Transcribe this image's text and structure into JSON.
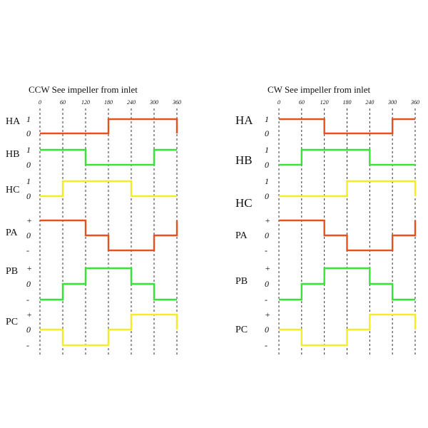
{
  "colors": {
    "red": "#e8501e",
    "green": "#33e633",
    "yellow": "#f2ec2a"
  },
  "angles": [
    "0",
    "60",
    "120",
    "180",
    "240",
    "300",
    "360"
  ],
  "panels": [
    {
      "id": "ccw",
      "title": "CCW  See  impeller  from  inlet",
      "rows": [
        {
          "label": "HA",
          "levels": [
            "1",
            "0"
          ],
          "color": "red",
          "states": [
            0,
            0,
            0,
            1,
            1,
            1
          ]
        },
        {
          "label": "HB",
          "levels": [
            "1",
            "0"
          ],
          "color": "green",
          "states": [
            1,
            1,
            0,
            0,
            0,
            1
          ]
        },
        {
          "label": "HC",
          "levels": [
            "1",
            "0"
          ],
          "color": "yellow",
          "states": [
            0,
            1,
            1,
            1,
            0,
            0
          ]
        },
        {
          "label": "PA",
          "levels": [
            "+",
            "0",
            "-"
          ],
          "color": "red",
          "states": [
            1,
            1,
            0,
            -1,
            -1,
            0
          ]
        },
        {
          "label": "PB",
          "levels": [
            "+",
            "0",
            "-"
          ],
          "color": "green",
          "states": [
            -1,
            0,
            1,
            1,
            0,
            -1
          ]
        },
        {
          "label": "PC",
          "levels": [
            "+",
            "0",
            "-"
          ],
          "color": "yellow",
          "states": [
            0,
            -1,
            -1,
            0,
            1,
            1
          ]
        }
      ]
    },
    {
      "id": "cw",
      "title": "CW  See  impeller  from  inlet",
      "rows": [
        {
          "label": "HA",
          "levels": [
            "1",
            "0"
          ],
          "color": "red",
          "states": [
            1,
            1,
            0,
            0,
            0,
            1
          ]
        },
        {
          "label": "HB",
          "levels": [
            "1",
            "0"
          ],
          "color": "green",
          "states": [
            0,
            1,
            1,
            1,
            0,
            0
          ]
        },
        {
          "label": "HC",
          "levels": [
            "1",
            "0"
          ],
          "color": "yellow",
          "states": [
            0,
            0,
            0,
            1,
            1,
            1
          ]
        },
        {
          "label": "PA",
          "levels": [
            "+",
            "0",
            "-"
          ],
          "color": "red",
          "states": [
            1,
            1,
            0,
            -1,
            -1,
            0
          ]
        },
        {
          "label": "PB",
          "levels": [
            "+",
            "0",
            "-"
          ],
          "color": "green",
          "states": [
            -1,
            0,
            1,
            1,
            0,
            -1
          ]
        },
        {
          "label": "PC",
          "levels": [
            "+",
            "0",
            "-"
          ],
          "color": "yellow",
          "states": [
            0,
            -1,
            -1,
            0,
            1,
            1
          ]
        }
      ]
    }
  ]
}
